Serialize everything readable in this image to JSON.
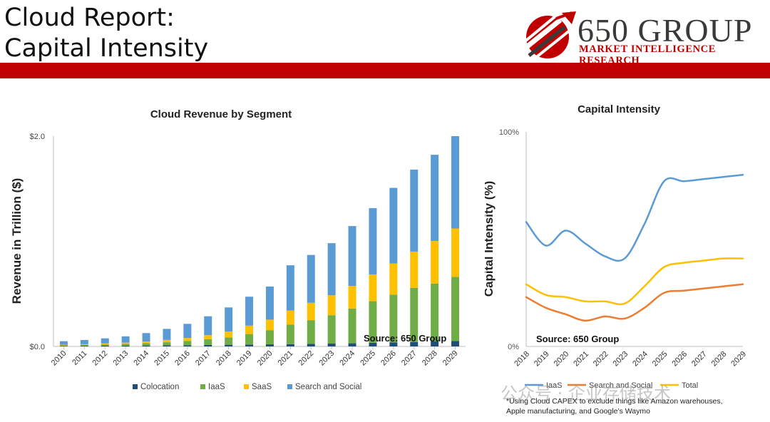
{
  "header": {
    "title_line1": "Cloud Report:",
    "title_line2": "Capital Intensity",
    "logo_name": "650 GROUP",
    "logo_subtitle": "MARKET INTELLIGENCE RESEARCH"
  },
  "colors": {
    "accent_red": "#c00000",
    "colocation": "#1f4e79",
    "iaas": "#70ad47",
    "saas": "#ffc000",
    "search_social": "#5b9bd5",
    "line_iaas": "#5b9bd5",
    "line_search_social": "#ed7d31",
    "line_total": "#ffc000"
  },
  "chart_data": [
    {
      "type": "bar",
      "stacked": true,
      "title": "Cloud Revenue by Segment",
      "ylabel": "Revenue in Trillion ($)",
      "xlabel": "",
      "y_ticks": [
        "$2.0",
        "$0.0"
      ],
      "ylim": [
        0,
        2.0
      ],
      "source": "Source: 650 Group",
      "categories": [
        "2010",
        "2011",
        "2012",
        "2013",
        "2014",
        "2015",
        "2016",
        "2017",
        "2018",
        "2019",
        "2020",
        "2021",
        "2022",
        "2023",
        "2024",
        "2025",
        "2026",
        "2027",
        "2028",
        "2029"
      ],
      "series": [
        {
          "name": "Colocation",
          "values": [
            0.005,
            0.006,
            0.007,
            0.008,
            0.009,
            0.01,
            0.012,
            0.014,
            0.016,
            0.018,
            0.02,
            0.022,
            0.025,
            0.027,
            0.03,
            0.035,
            0.038,
            0.042,
            0.048,
            0.052
          ]
        },
        {
          "name": "IaaS",
          "values": [
            0.005,
            0.008,
            0.012,
            0.016,
            0.022,
            0.03,
            0.04,
            0.055,
            0.07,
            0.1,
            0.135,
            0.185,
            0.225,
            0.27,
            0.33,
            0.395,
            0.455,
            0.515,
            0.55,
            0.61
          ]
        },
        {
          "name": "SaaS",
          "values": [
            0.005,
            0.007,
            0.01,
            0.012,
            0.016,
            0.022,
            0.028,
            0.038,
            0.055,
            0.08,
            0.1,
            0.135,
            0.165,
            0.19,
            0.215,
            0.255,
            0.295,
            0.345,
            0.405,
            0.46
          ]
        },
        {
          "name": "Search and Social",
          "values": [
            0.035,
            0.04,
            0.048,
            0.06,
            0.08,
            0.105,
            0.135,
            0.18,
            0.23,
            0.275,
            0.315,
            0.43,
            0.455,
            0.495,
            0.57,
            0.63,
            0.72,
            0.78,
            0.82,
            0.878
          ]
        }
      ]
    },
    {
      "type": "line",
      "title": "Capital Intensity",
      "ylabel": "Capital Intensity (%)",
      "y_ticks": [
        "100%",
        "0%"
      ],
      "ylim": [
        0,
        100
      ],
      "source": "Source: 650 Group",
      "x": [
        "2018",
        "2019",
        "2020",
        "2021",
        "2022",
        "2023",
        "2024",
        "2025",
        "2026",
        "2027",
        "2028",
        "2029"
      ],
      "series": [
        {
          "name": "IaaS",
          "values": [
            58,
            47,
            54,
            48,
            42,
            41,
            57,
            77,
            77,
            78,
            79,
            80
          ]
        },
        {
          "name": "Search and Social",
          "values": [
            23,
            18,
            15,
            12,
            14,
            13,
            18,
            25,
            26,
            27,
            28,
            29
          ]
        },
        {
          "name": "Total",
          "values": [
            29,
            24,
            23,
            21,
            21,
            20,
            28,
            37,
            39,
            40,
            41,
            41
          ]
        }
      ]
    }
  ],
  "footnote": {
    "line1": "*Using Cloud CAPEX to exclude things like Amazon warehouses,",
    "line2": "Apple manufacturing, and Google’s Waymo"
  },
  "watermark": "公众号 · 企业存储技术"
}
